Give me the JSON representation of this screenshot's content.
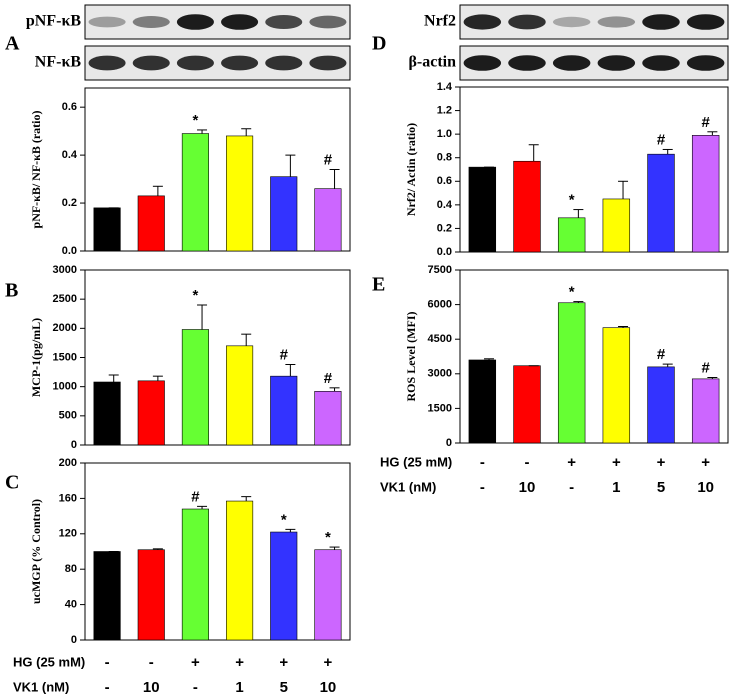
{
  "chart_data": [
    {
      "type": "bar",
      "label": "A",
      "blots": [
        "pNF-κB",
        "NF-κB"
      ],
      "ylabel": "pNF-κB/ NF-κB (ratio)",
      "values": [
        0.18,
        0.23,
        0.49,
        0.48,
        0.31,
        0.26
      ],
      "errors": [
        0,
        0.04,
        0.015,
        0.03,
        0.09,
        0.08
      ],
      "colors": [
        "#000000",
        "#ff0000",
        "#66ff33",
        "#ffff00",
        "#3333ff",
        "#cc66ff"
      ],
      "annotations": [
        {
          "index": 2,
          "text": "*"
        },
        {
          "index": 5,
          "text": "#"
        }
      ],
      "ylim": [
        0,
        0.68
      ],
      "yticks": [
        {
          "value": 0,
          "label": "0.0"
        },
        0.2,
        0.4,
        0.6
      ]
    },
    {
      "type": "bar",
      "label": "B",
      "ylabel": "MCP-1(pg/mL)",
      "values": [
        1080,
        1100,
        1980,
        1700,
        1180,
        920
      ],
      "errors": [
        120,
        80,
        420,
        200,
        200,
        60
      ],
      "colors": [
        "#000000",
        "#ff0000",
        "#66ff33",
        "#ffff00",
        "#3333ff",
        "#cc66ff"
      ],
      "annotations": [
        {
          "index": 2,
          "text": "*"
        },
        {
          "index": 4,
          "text": "#"
        },
        {
          "index": 5,
          "text": "#"
        }
      ],
      "ylim": [
        0,
        3000
      ],
      "yticks": [
        0,
        500,
        1000,
        1500,
        2000,
        2500,
        3000
      ]
    },
    {
      "type": "bar",
      "label": "C",
      "ylabel": "ucMGP (% Control)",
      "values": [
        100,
        102,
        148,
        157,
        122,
        102
      ],
      "errors": [
        0,
        1,
        3,
        5,
        3,
        3
      ],
      "colors": [
        "#000000",
        "#ff0000",
        "#66ff33",
        "#ffff00",
        "#3333ff",
        "#cc66ff"
      ],
      "annotations": [
        {
          "index": 2,
          "text": "#"
        },
        {
          "index": 4,
          "text": "*"
        },
        {
          "index": 5,
          "text": "*"
        }
      ],
      "ylim": [
        0,
        200
      ],
      "yticks": [
        0,
        40,
        80,
        120,
        160,
        200
      ]
    },
    {
      "type": "bar",
      "label": "D",
      "blots": [
        "Nrf2",
        "β-actin"
      ],
      "ylabel": "Nrf2/ Actin (ratio)",
      "values": [
        0.72,
        0.77,
        0.29,
        0.45,
        0.83,
        0.99
      ],
      "errors": [
        0,
        0.14,
        0.07,
        0.15,
        0.04,
        0.03
      ],
      "colors": [
        "#000000",
        "#ff0000",
        "#66ff33",
        "#ffff00",
        "#3333ff",
        "#cc66ff"
      ],
      "annotations": [
        {
          "index": 2,
          "text": "*"
        },
        {
          "index": 4,
          "text": "#"
        },
        {
          "index": 5,
          "text": "#"
        }
      ],
      "ylim": [
        0,
        1.4
      ],
      "yticks": [
        {
          "value": 0,
          "label": "0.0"
        },
        0.2,
        0.4,
        0.6,
        0.8,
        {
          "value": 1,
          "label": "1.0"
        },
        1.2,
        1.4
      ]
    },
    {
      "type": "bar",
      "label": "E",
      "ylabel": "ROS Level (MFI)",
      "values": [
        3600,
        3350,
        6080,
        5000,
        3300,
        2780
      ],
      "errors": [
        50,
        0,
        50,
        50,
        120,
        60
      ],
      "colors": [
        "#000000",
        "#ff0000",
        "#66ff33",
        "#ffff00",
        "#3333ff",
        "#cc66ff"
      ],
      "annotations": [
        {
          "index": 2,
          "text": "*"
        },
        {
          "index": 4,
          "text": "#"
        },
        {
          "index": 5,
          "text": "#"
        }
      ],
      "ylim": [
        0,
        7500
      ],
      "yticks": [
        0,
        1500,
        3000,
        4500,
        6000,
        7500
      ]
    }
  ],
  "treatments": [
    {
      "label": "HG (25 mM)",
      "levels": [
        "-",
        "-",
        "+",
        "+",
        "+",
        "+"
      ]
    },
    {
      "label": "VK1 (nM)",
      "levels": [
        "-",
        "10",
        "-",
        "1",
        "5",
        "10"
      ]
    }
  ]
}
